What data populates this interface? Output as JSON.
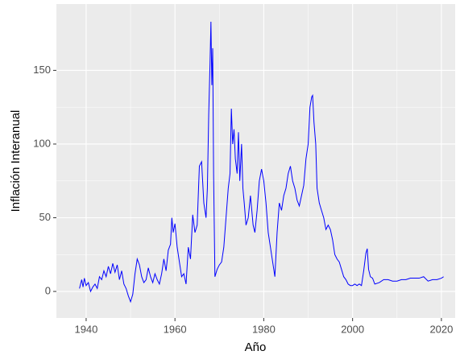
{
  "chart_data": {
    "type": "line",
    "x_label": "Año",
    "y_label": "Inflación Interanual",
    "xlim": [
      1933.3,
      2023.1
    ],
    "ylim": [
      -18,
      195
    ],
    "xticks": [
      1940,
      1960,
      1980,
      2000,
      2020
    ],
    "yticks": [
      0,
      50,
      100,
      150
    ],
    "grid": true,
    "series": [
      {
        "color": "#0000ff",
        "x": [
          1938.5,
          1939,
          1939.3,
          1939.6,
          1940,
          1940.5,
          1941,
          1941.5,
          1942,
          1942.5,
          1943,
          1943.5,
          1944,
          1944.5,
          1945,
          1945.5,
          1946,
          1946.5,
          1947,
          1947.5,
          1948,
          1948.5,
          1949,
          1949.5,
          1950,
          1950.5,
          1951,
          1951.5,
          1952,
          1952.5,
          1953,
          1953.5,
          1954,
          1954.5,
          1955,
          1955.5,
          1956,
          1956.5,
          1957,
          1957.5,
          1958,
          1958.5,
          1959,
          1959.3,
          1959.6,
          1960,
          1960.5,
          1961,
          1961.5,
          1962,
          1962.5,
          1963,
          1963.5,
          1964,
          1964.5,
          1965,
          1965.5,
          1966,
          1966.5,
          1967,
          1967.3,
          1967.6,
          1967.9,
          1968.1,
          1968.3,
          1968.5,
          1968.7,
          1969,
          1969.5,
          1970,
          1970.5,
          1971,
          1971.5,
          1972,
          1972.4,
          1972.7,
          1973,
          1973.3,
          1973.6,
          1974,
          1974.3,
          1974.6,
          1975,
          1975.3,
          1975.6,
          1976,
          1976.5,
          1977,
          1977.3,
          1977.6,
          1978,
          1978.5,
          1979,
          1979.5,
          1980,
          1980.5,
          1981,
          1981.5,
          1982,
          1982.5,
          1983,
          1983.5,
          1984,
          1984.5,
          1985,
          1985.5,
          1986,
          1986.5,
          1987,
          1987.5,
          1988,
          1988.5,
          1989,
          1989.5,
          1990,
          1990.4,
          1990.8,
          1991,
          1991.3,
          1991.7,
          1992,
          1992.5,
          1993,
          1993.5,
          1994,
          1994.5,
          1995,
          1995.5,
          1996,
          1996.5,
          1997,
          1997.5,
          1998,
          1998.5,
          1999,
          1999.5,
          2000,
          2000.5,
          2001,
          2001.5,
          2002,
          2002.5,
          2003,
          2003.3,
          2003.6,
          2004,
          2004.5,
          2005,
          2006,
          2007,
          2008,
          2009,
          2010,
          2011,
          2012,
          2013,
          2014,
          2015,
          2016,
          2017,
          2018,
          2019,
          2020,
          2020.5
        ],
        "values": [
          2,
          8,
          3,
          9,
          4,
          6,
          0,
          3,
          5,
          2,
          10,
          8,
          14,
          10,
          17,
          12,
          19,
          13,
          18,
          8,
          14,
          5,
          2,
          -3,
          -7,
          -2,
          12,
          22,
          18,
          10,
          6,
          8,
          16,
          10,
          6,
          12,
          8,
          5,
          12,
          22,
          14,
          28,
          32,
          50,
          40,
          46,
          30,
          20,
          10,
          12,
          5,
          30,
          22,
          52,
          40,
          45,
          85,
          88,
          60,
          50,
          70,
          120,
          155,
          183,
          140,
          165,
          80,
          10,
          15,
          18,
          20,
          30,
          50,
          70,
          80,
          124,
          100,
          110,
          90,
          80,
          108,
          75,
          100,
          70,
          60,
          45,
          50,
          65,
          55,
          45,
          40,
          55,
          75,
          83,
          75,
          60,
          40,
          30,
          20,
          10,
          40,
          60,
          55,
          65,
          70,
          80,
          85,
          75,
          70,
          62,
          58,
          65,
          72,
          90,
          100,
          125,
          132,
          133,
          115,
          100,
          70,
          60,
          55,
          50,
          42,
          45,
          42,
          35,
          25,
          22,
          20,
          15,
          10,
          8,
          5,
          4,
          4,
          5,
          4,
          5,
          4,
          14,
          26,
          29,
          15,
          10,
          9,
          5,
          6,
          8,
          8,
          7,
          7,
          8,
          8,
          9,
          9,
          9,
          10,
          7,
          8,
          8,
          9,
          10
        ]
      }
    ]
  }
}
